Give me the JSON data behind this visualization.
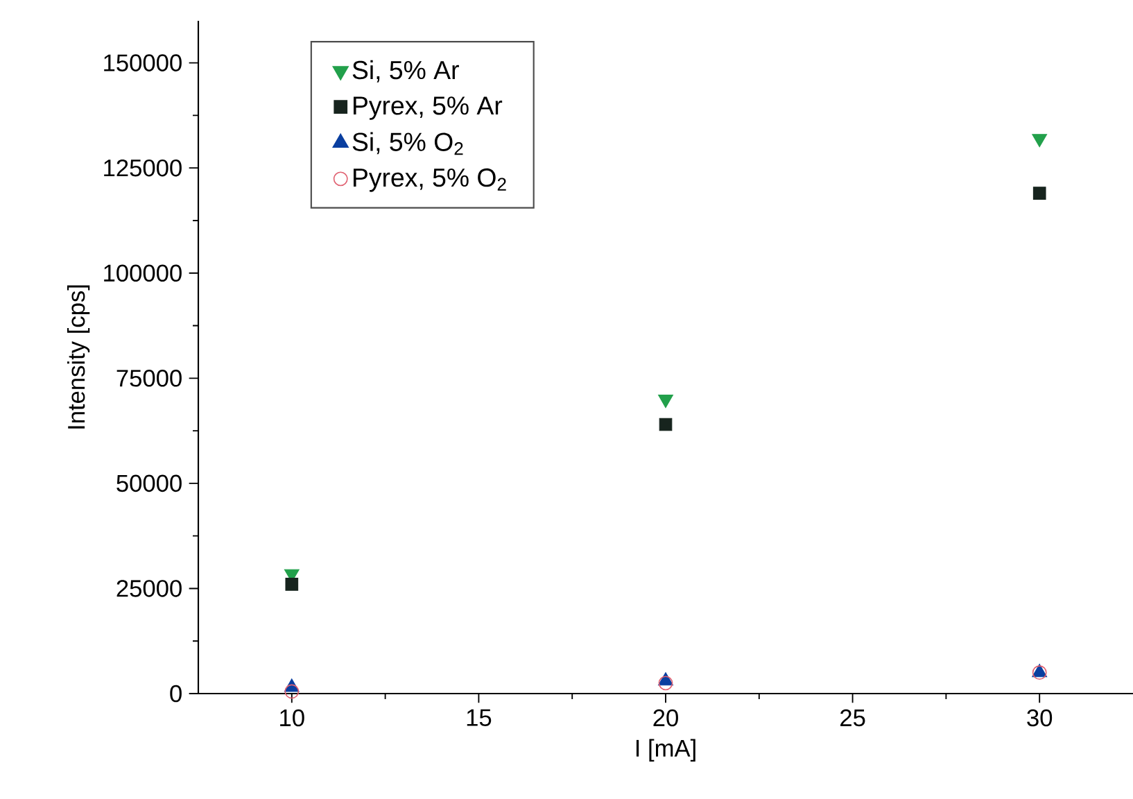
{
  "chart_data": {
    "type": "scatter",
    "xlabel": "I [mA]",
    "ylabel": "Intensity [cps]",
    "x": [
      10,
      20,
      30
    ],
    "series": [
      {
        "name": "Si, 5% Ar",
        "color": "#22a04b",
        "marker": "triangle-down",
        "values": [
          28500,
          70000,
          132000
        ]
      },
      {
        "name": "Pyrex, 5% Ar",
        "color": "#17241e",
        "marker": "square",
        "values": [
          26000,
          64000,
          119000
        ]
      },
      {
        "name": "Si, 5% O$_{2}$",
        "color": "#0a3fa0",
        "marker": "triangle",
        "values": [
          1500,
          3000,
          5000
        ]
      },
      {
        "name": "Pyrex, 5% O$_{2}$",
        "color": "#e06070",
        "marker": "circle-open",
        "values": [
          500,
          2500,
          5000
        ]
      }
    ],
    "xlim": [
      7.5,
      32.5
    ],
    "ylim": [
      0,
      160000
    ],
    "xticks": [
      10,
      15,
      20,
      25,
      30
    ],
    "yticks": [
      0,
      25000,
      50000,
      75000,
      100000,
      125000,
      150000
    ],
    "grid": false,
    "legend": "top left"
  }
}
